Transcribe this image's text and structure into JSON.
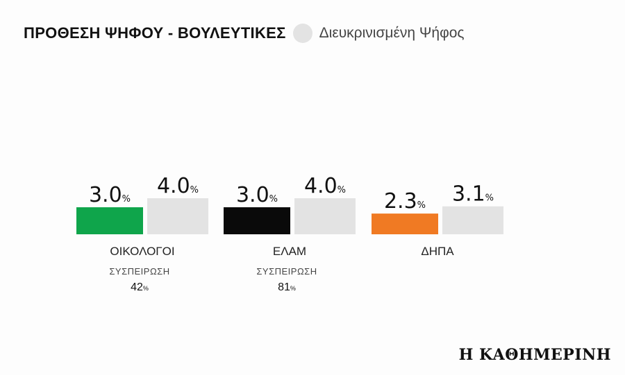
{
  "header": {
    "title": "ΠΡΟΘΕΣΗ ΨΗΦΟΥ - ΒΟΥΛΕΥΤΙΚΕΣ",
    "legend_label": "Διευκρινισμένη Ψήφος",
    "legend_color": "#e3e3e3"
  },
  "logo": "Η ΚΑΘΗΜΕΡΙΝΗ",
  "chart_data": {
    "type": "bar",
    "title": "ΠΡΟΘΕΣΗ ΨΗΦΟΥ - ΒΟΥΛΕΥΤΙΚΕΣ",
    "categories": [
      "ΟΙΚΟΛΟΓΟΙ",
      "ΕΛΑΜ",
      "ΔΗΠΑ"
    ],
    "unit": "%",
    "series": [
      {
        "values": [
          3.0,
          3.0,
          2.3
        ],
        "value_labels": [
          "3.0",
          "3.0",
          "2.3"
        ],
        "colors": [
          "#0fa54b",
          "#0a0a0a",
          "#f07a23"
        ]
      },
      {
        "name": "Διευκρινισμένη Ψήφος",
        "values": [
          4.0,
          4.0,
          3.1
        ],
        "value_labels": [
          "4.0",
          "4.0",
          "3.1"
        ],
        "color": "#e3e3e3"
      }
    ],
    "cohesion": {
      "label": "ΣΥΣΠΕΙΡΩΣΗ",
      "values": [
        42,
        81,
        null
      ],
      "value_labels": [
        "42",
        "81",
        ""
      ]
    },
    "ylim": [
      0,
      4.0
    ],
    "grid": false
  }
}
